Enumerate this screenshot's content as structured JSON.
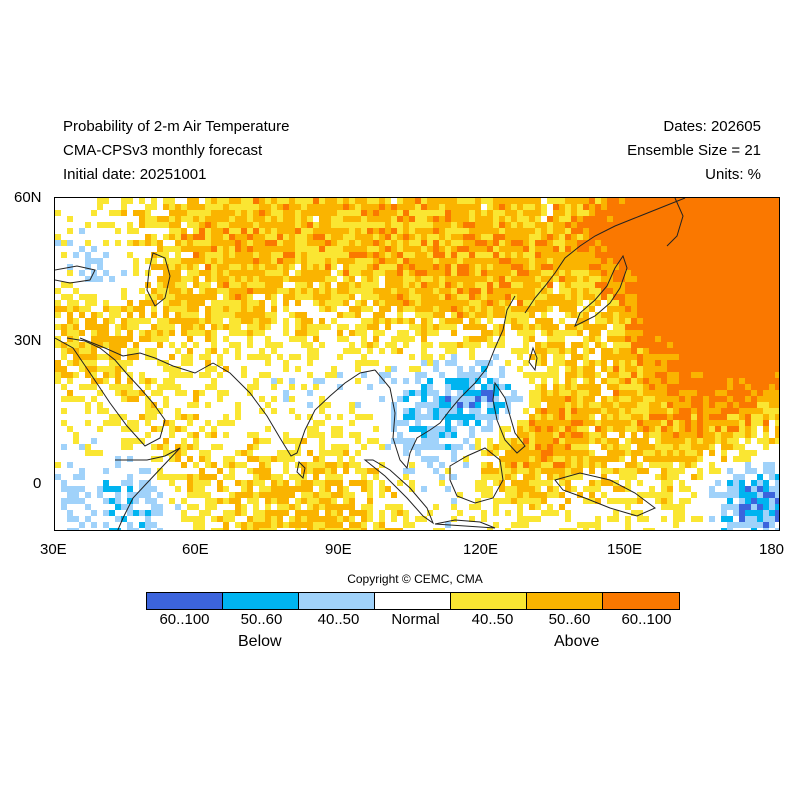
{
  "header": {
    "title_line1": "Probability of 2-m Air Temperature",
    "title_line2": "CMA-CPSv3 monthly forecast",
    "title_line3": "Initial date: 20251001",
    "right_line1": "Dates: 202605",
    "right_line2": "Ensemble Size = 21",
    "right_line3": "Units: %"
  },
  "map": {
    "lon_range": [
      30,
      180
    ],
    "lat_range": [
      -10,
      60
    ],
    "lat_ticks": [
      "60N",
      "30N",
      "0"
    ],
    "lon_ticks": [
      "30E",
      "60E",
      "90E",
      "120E",
      "150E",
      "180"
    ]
  },
  "copyright": "Copyright © CEMC, CMA",
  "legend": {
    "categories": [
      {
        "label": "60..100",
        "color": "#3c64dc"
      },
      {
        "label": "50..60",
        "color": "#00b4f0"
      },
      {
        "label": "40..50",
        "color": "#a0d2fa"
      },
      {
        "label": "Normal",
        "color": "#ffffff"
      },
      {
        "label": "40..50",
        "color": "#fae632"
      },
      {
        "label": "50..60",
        "color": "#fab400"
      },
      {
        "label": "60..100",
        "color": "#fa7800"
      }
    ],
    "below_label": "Below",
    "above_label": "Above"
  }
}
